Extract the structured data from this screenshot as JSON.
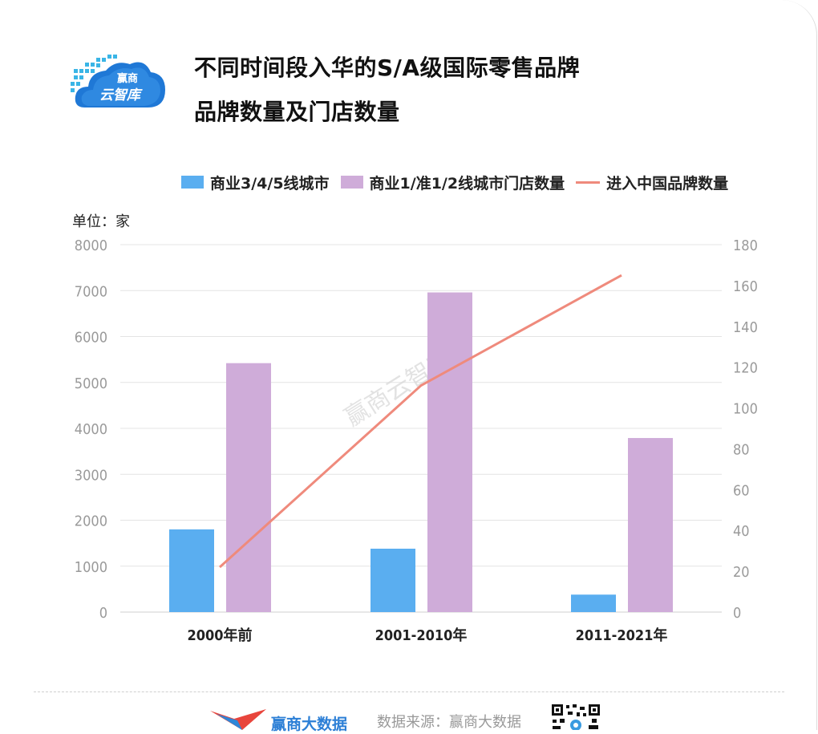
{
  "title": {
    "line1": "不同时间段入华的S/A级国际零售品牌",
    "line2": "品牌数量及门店数量"
  },
  "logo": {
    "top_text": "赢商",
    "bottom_text": "云智库"
  },
  "unit_label": "单位：家",
  "watermark": "赢商云智库",
  "footer": {
    "brand": "赢商大数据",
    "source": "数据来源：赢商大数据",
    "qr_icon": "qr-code-icon"
  },
  "colors": {
    "series1": "#5aaef0",
    "series2": "#cfacd9",
    "line": "#ef8a7c"
  },
  "chart_data": {
    "type": "bar",
    "categories": [
      "2000年前",
      "2001-2010年",
      "2011-2021年"
    ],
    "series": [
      {
        "name": "商业3/4/5线城市",
        "type": "bar",
        "axis": "left",
        "values": [
          1800,
          1380,
          380
        ]
      },
      {
        "name": "商业1/准1/2线城市门店数量",
        "type": "bar",
        "axis": "left",
        "values": [
          5420,
          6960,
          3790
        ]
      },
      {
        "name": "进入中国品牌数量",
        "type": "line",
        "axis": "right",
        "values": [
          22,
          111,
          165
        ]
      }
    ],
    "y_left": {
      "ylim": [
        0,
        8000
      ],
      "ticks": [
        "0",
        "1000",
        "2000",
        "3000",
        "4000",
        "5000",
        "6000",
        "7000",
        "8000"
      ]
    },
    "y_right": {
      "ylim": [
        0,
        180
      ],
      "ticks": [
        "0",
        "20",
        "40",
        "60",
        "80",
        "100",
        "120",
        "140",
        "160",
        "180"
      ]
    },
    "legend_position": "top",
    "grid": true
  }
}
